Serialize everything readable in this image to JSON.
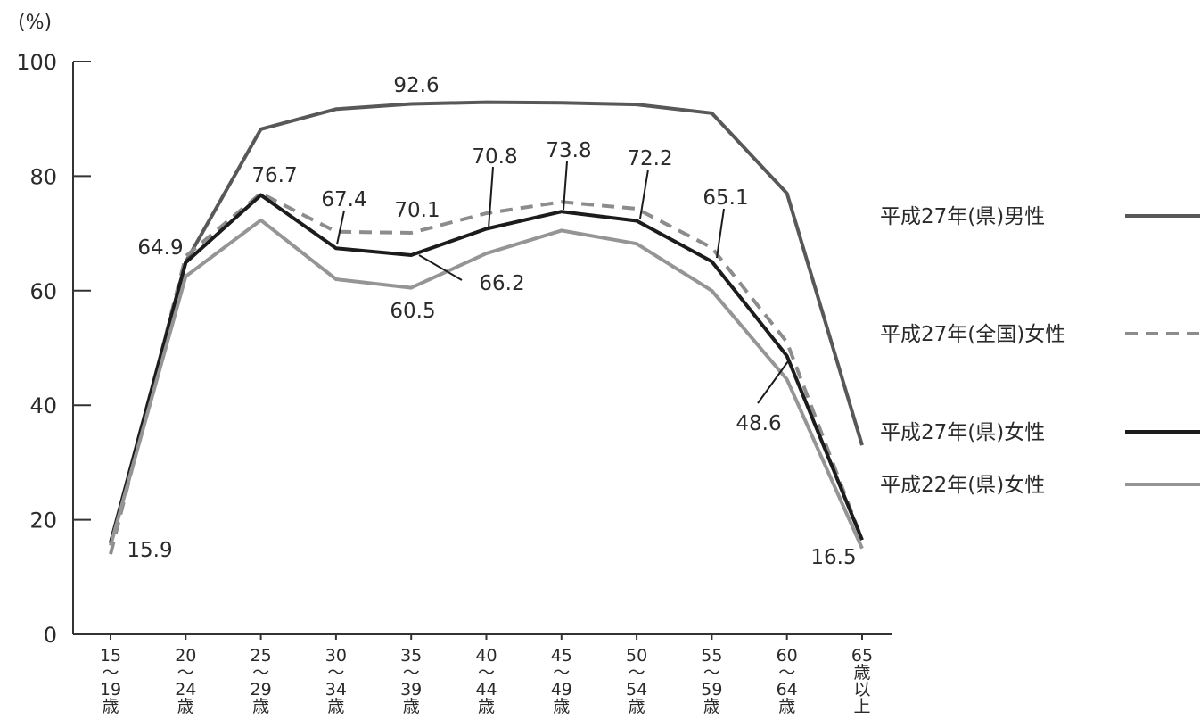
{
  "chart_data": {
    "type": "line",
    "ylabel": "(%)",
    "ylim": [
      0,
      100
    ],
    "yticks": [
      0,
      20,
      40,
      60,
      80,
      100
    ],
    "grid": false,
    "legend_position": "right",
    "categories": [
      [
        "15",
        "～",
        "19",
        "歳"
      ],
      [
        "20",
        "～",
        "24",
        "歳"
      ],
      [
        "25",
        "～",
        "29",
        "歳"
      ],
      [
        "30",
        "～",
        "34",
        "歳"
      ],
      [
        "35",
        "～",
        "39",
        "歳"
      ],
      [
        "40",
        "～",
        "44",
        "歳"
      ],
      [
        "45",
        "～",
        "49",
        "歳"
      ],
      [
        "50",
        "～",
        "54",
        "歳"
      ],
      [
        "55",
        "～",
        "59",
        "歳"
      ],
      [
        "60",
        "～",
        "64",
        "歳"
      ],
      [
        "65",
        "歳",
        "以",
        "上"
      ]
    ],
    "series": [
      {
        "name": "平成27年(県)男性",
        "color": "#585858",
        "dash": "solid",
        "values": [
          16.0,
          65.0,
          88.2,
          91.7,
          92.6,
          92.9,
          92.8,
          92.5,
          91.0,
          77.0,
          33.0
        ]
      },
      {
        "name": "平成27年(全国)女性",
        "color": "#8c8c8c",
        "dash": "dashed",
        "values": [
          14.0,
          66.0,
          77.0,
          70.3,
          70.1,
          73.5,
          75.5,
          74.3,
          67.5,
          51.0,
          16.5
        ]
      },
      {
        "name": "平成27年(県)女性",
        "color": "#1c1c1c",
        "dash": "solid",
        "values": [
          15.9,
          64.9,
          76.7,
          67.4,
          66.2,
          70.8,
          73.8,
          72.2,
          65.1,
          48.6,
          16.5
        ]
      },
      {
        "name": "平成22年(県)女性",
        "color": "#959595",
        "dash": "solid",
        "values": [
          15.5,
          62.5,
          72.3,
          62.0,
          60.5,
          66.5,
          70.5,
          68.2,
          60.0,
          44.5,
          15.0
        ]
      }
    ],
    "annotations": [
      {
        "text": "92.6"
      },
      {
        "text": "76.7"
      },
      {
        "text": "67.4"
      },
      {
        "text": "70.1"
      },
      {
        "text": "70.8"
      },
      {
        "text": "73.8"
      },
      {
        "text": "72.2"
      },
      {
        "text": "65.1"
      },
      {
        "text": "64.9"
      },
      {
        "text": "66.2"
      },
      {
        "text": "60.5"
      },
      {
        "text": "48.6"
      },
      {
        "text": "15.9"
      },
      {
        "text": "16.5"
      }
    ]
  }
}
